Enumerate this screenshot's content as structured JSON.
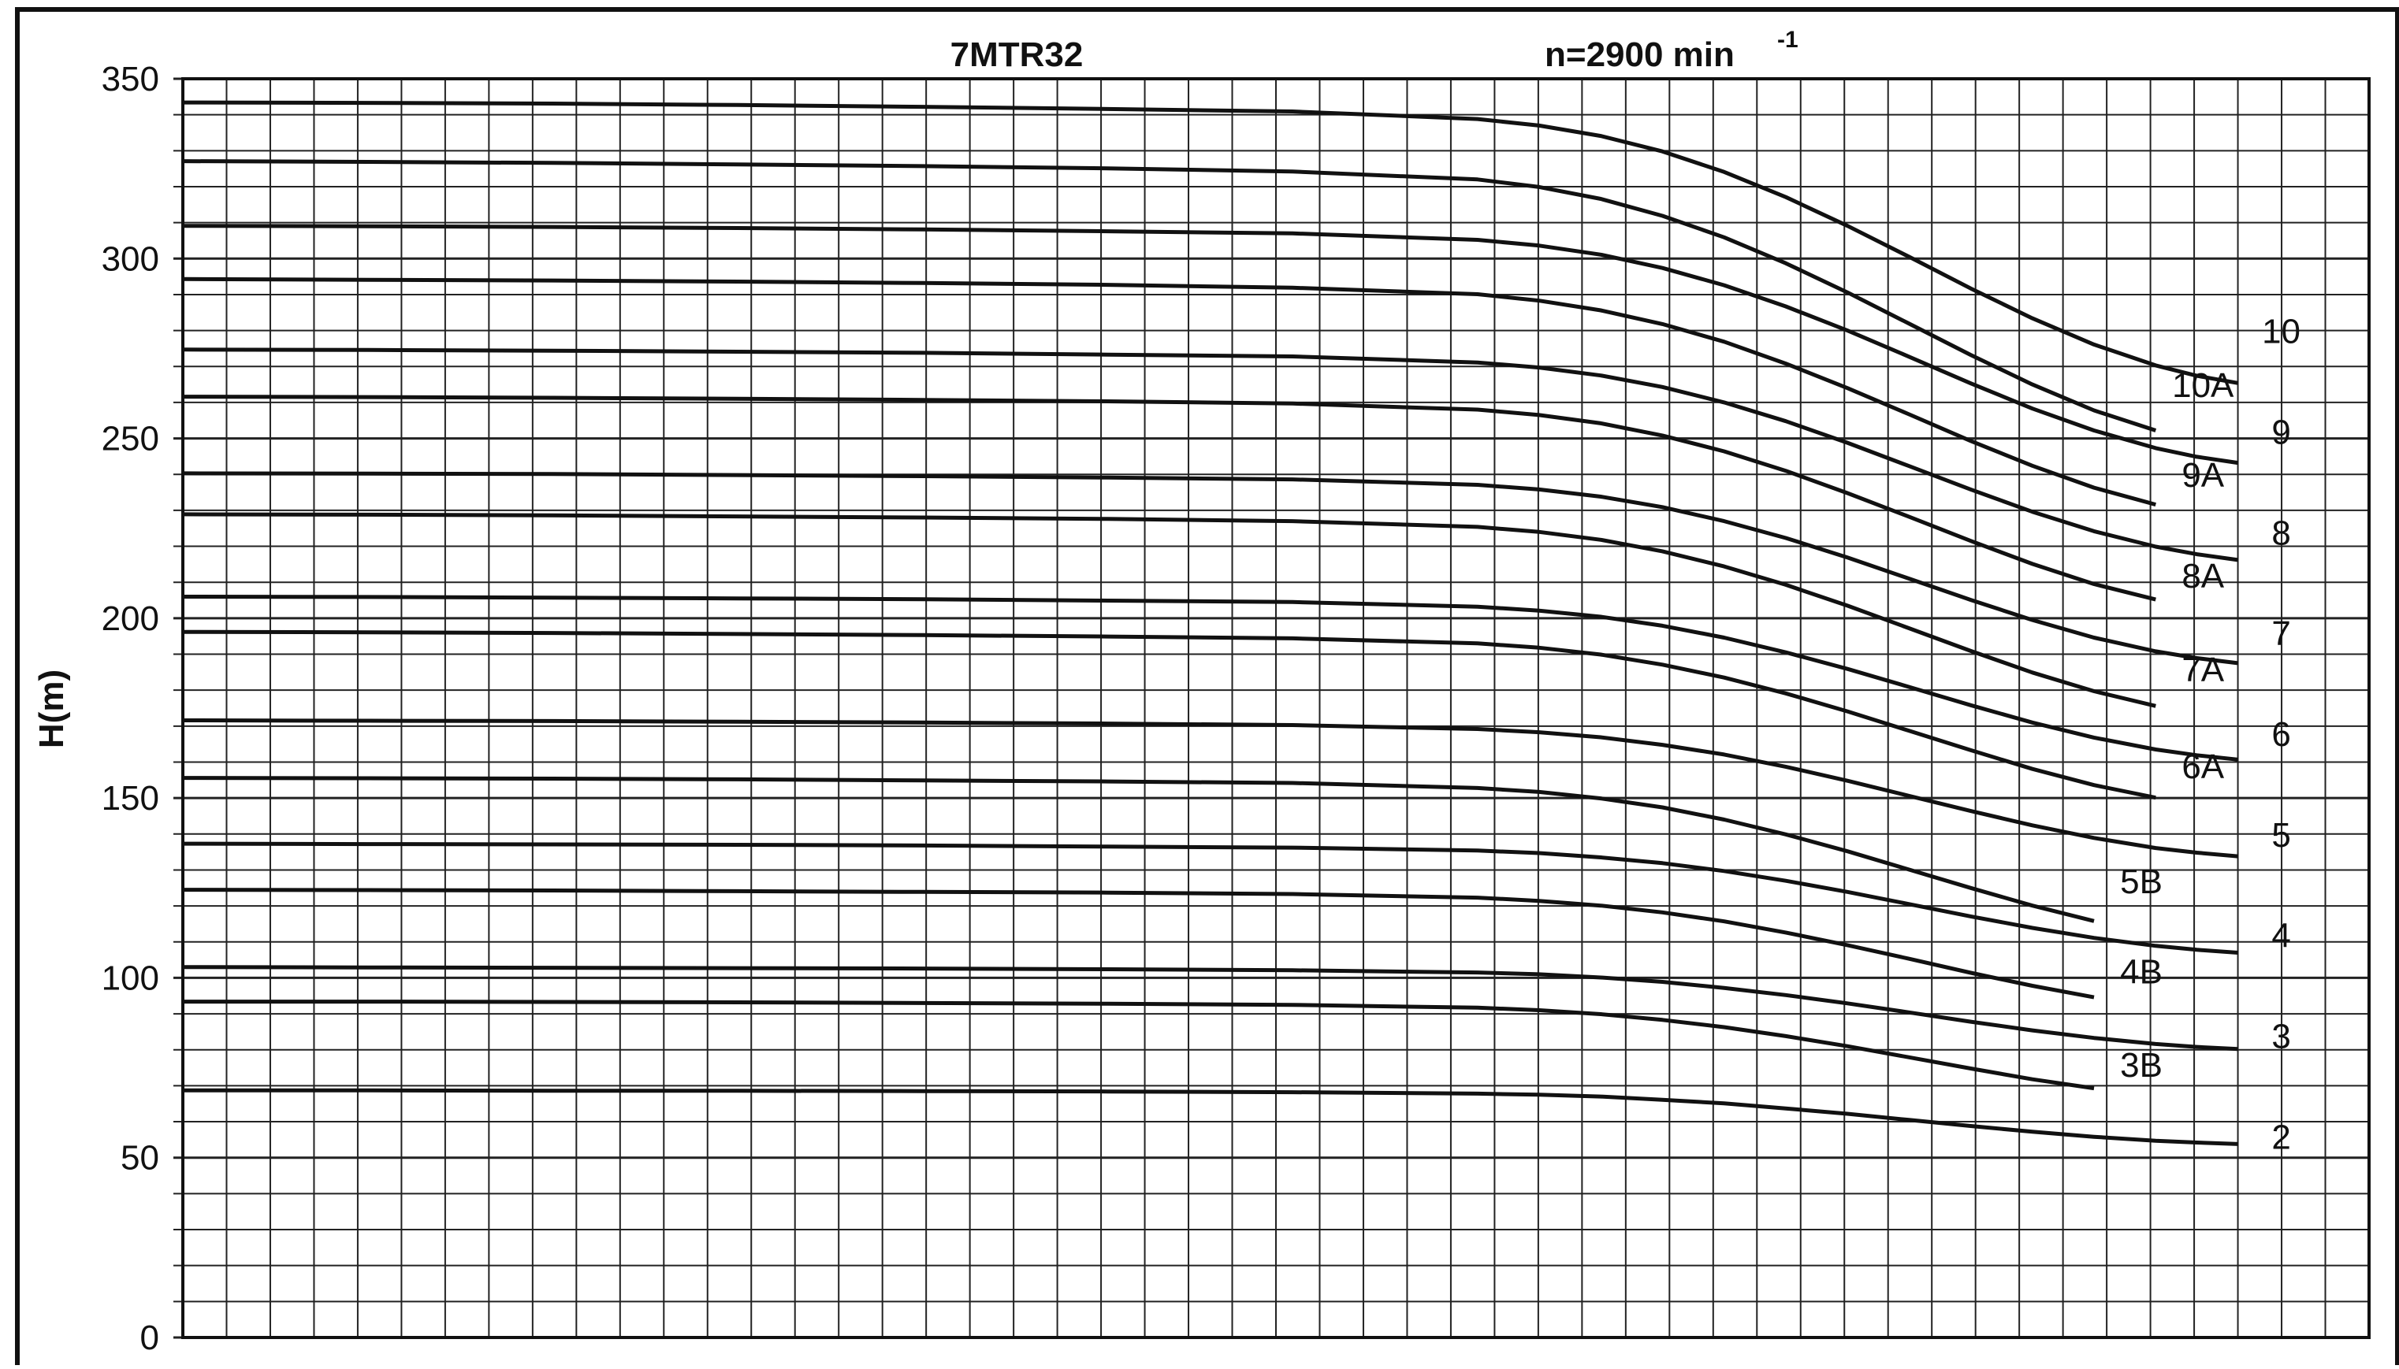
{
  "chart_data": {
    "type": "line",
    "title": "7MTR32",
    "speed_label": "n=2900 min",
    "speed_exponent": "-1",
    "xlabel": "",
    "ylabel": "H(m)",
    "ylim": [
      0,
      350
    ],
    "yticks": [
      0,
      50,
      100,
      150,
      200,
      250,
      300,
      350
    ],
    "xlim": [
      0,
      1
    ],
    "grid": true,
    "x": [
      0,
      0.09,
      0.18,
      0.27,
      0.36,
      0.45,
      0.54,
      0.63,
      0.66,
      0.69,
      0.72,
      0.75,
      0.78,
      0.81,
      0.84,
      0.87,
      0.9,
      0.93,
      0.96,
      0.98,
      1.0
    ],
    "series": [
      {
        "name": "10",
        "values": [
          343.4,
          343.3,
          343.1,
          342.7,
          342.2,
          341.6,
          340.9,
          338.8,
          337.0,
          334.1,
          329.8,
          324.1,
          317.1,
          309.1,
          300.5,
          291.7,
          283.4,
          276.1,
          270.3,
          267.4,
          265.4
        ],
        "label_value": 280
      },
      {
        "name": "10A",
        "values": [
          327.1,
          326.9,
          326.6,
          326.2,
          325.7,
          325.1,
          324.2,
          322.0,
          319.9,
          316.6,
          311.9,
          305.9,
          298.7,
          290.6,
          281.9,
          273.2,
          265.0,
          257.8,
          252.2,
          249.4,
          247.4
        ],
        "label_value": 265
      },
      {
        "name": "9",
        "values": [
          309.1,
          309.0,
          308.8,
          308.5,
          308.1,
          307.6,
          307.0,
          305.2,
          303.6,
          301.1,
          297.4,
          292.6,
          286.7,
          280.0,
          272.7,
          265.3,
          258.3,
          252.2,
          247.3,
          244.9,
          243.2
        ],
        "label_value": 252
      },
      {
        "name": "9A",
        "values": [
          294.3,
          294.1,
          293.9,
          293.6,
          293.2,
          292.7,
          291.9,
          290.1,
          288.3,
          285.6,
          281.8,
          276.9,
          270.8,
          264.0,
          256.7,
          249.3,
          242.4,
          236.3,
          231.6,
          229.3,
          227.6
        ],
        "label_value": 240
      },
      {
        "name": "8",
        "values": [
          274.7,
          274.6,
          274.4,
          274.1,
          273.8,
          273.3,
          272.8,
          271.1,
          269.7,
          267.5,
          264.3,
          260.0,
          254.8,
          248.8,
          242.3,
          235.8,
          229.6,
          224.2,
          219.9,
          217.8,
          216.2
        ],
        "label_value": 224
      },
      {
        "name": "8A",
        "values": [
          261.6,
          261.5,
          261.3,
          261.0,
          260.7,
          260.3,
          259.7,
          258.0,
          256.5,
          254.2,
          250.8,
          246.4,
          241.0,
          234.8,
          228.2,
          221.5,
          215.1,
          209.5,
          205.2,
          203.0,
          201.4
        ],
        "label_value": 212
      },
      {
        "name": "7",
        "values": [
          240.3,
          240.2,
          240.1,
          239.8,
          239.5,
          239.1,
          238.6,
          237.1,
          235.8,
          233.8,
          230.9,
          227.0,
          222.3,
          216.9,
          211.0,
          205.1,
          199.5,
          194.6,
          190.8,
          188.9,
          187.5
        ],
        "label_value": 196
      },
      {
        "name": "7A",
        "values": [
          228.9,
          228.8,
          228.6,
          228.3,
          228.0,
          227.6,
          227.0,
          225.4,
          224.0,
          221.8,
          218.6,
          214.4,
          209.3,
          203.5,
          197.2,
          190.9,
          184.9,
          179.7,
          175.6,
          173.5,
          172.0
        ],
        "label_value": 186
      },
      {
        "name": "6",
        "values": [
          206.0,
          205.9,
          205.7,
          205.5,
          205.3,
          204.9,
          204.5,
          203.2,
          202.1,
          200.4,
          197.9,
          194.6,
          190.5,
          185.9,
          180.9,
          175.8,
          171.0,
          166.8,
          163.5,
          161.9,
          160.7
        ],
        "label_value": 168
      },
      {
        "name": "6A",
        "values": [
          196.2,
          196.1,
          195.9,
          195.6,
          195.3,
          194.9,
          194.4,
          193.0,
          191.8,
          189.9,
          187.1,
          183.5,
          179.1,
          174.1,
          168.7,
          163.3,
          158.1,
          153.6,
          150.1,
          148.3,
          147.0
        ],
        "label_value": 159
      },
      {
        "name": "5",
        "values": [
          171.6,
          171.5,
          171.4,
          171.2,
          171.0,
          170.7,
          170.3,
          169.2,
          168.3,
          166.9,
          164.8,
          162.1,
          158.7,
          154.8,
          150.6,
          146.4,
          142.4,
          138.9,
          136.1,
          134.8,
          133.8
        ],
        "label_value": 140
      },
      {
        "name": "5B",
        "values": [
          155.6,
          155.5,
          155.4,
          155.2,
          154.9,
          154.6,
          154.2,
          152.8,
          151.7,
          149.9,
          147.4,
          144.0,
          139.9,
          135.2,
          130.1,
          125.0,
          120.1,
          115.8,
          112.4,
          110.7,
          109.5
        ],
        "label_value": 127
      },
      {
        "name": "4",
        "values": [
          137.3,
          137.2,
          137.1,
          137.0,
          136.8,
          136.5,
          136.2,
          135.4,
          134.7,
          133.5,
          131.9,
          129.7,
          127.0,
          123.9,
          120.5,
          117.1,
          113.9,
          111.1,
          108.9,
          107.8,
          107.0
        ],
        "label_value": 112
      },
      {
        "name": "4B",
        "values": [
          124.5,
          124.4,
          124.3,
          124.1,
          123.9,
          123.7,
          123.3,
          122.3,
          121.4,
          120.1,
          118.2,
          115.7,
          112.6,
          109.1,
          105.3,
          101.4,
          97.8,
          94.6,
          92.1,
          90.9,
          90.0
        ],
        "label_value": 102
      },
      {
        "name": "3",
        "values": [
          103.0,
          102.9,
          102.8,
          102.7,
          102.6,
          102.4,
          102.1,
          101.5,
          101.0,
          100.1,
          98.9,
          97.2,
          95.2,
          92.9,
          90.4,
          87.8,
          85.4,
          83.3,
          81.6,
          80.8,
          80.2
        ],
        "label_value": 84
      },
      {
        "name": "3B",
        "values": [
          93.4,
          93.4,
          93.3,
          93.2,
          93.0,
          92.8,
          92.5,
          91.7,
          91.0,
          89.9,
          88.3,
          86.3,
          83.8,
          81.0,
          77.9,
          74.8,
          71.8,
          69.3,
          67.2,
          66.3,
          65.5
        ],
        "label_value": 76
      },
      {
        "name": "2",
        "values": [
          68.7,
          68.7,
          68.6,
          68.6,
          68.5,
          68.4,
          68.2,
          67.8,
          67.5,
          67.0,
          66.1,
          65.1,
          63.7,
          62.2,
          60.5,
          58.8,
          57.2,
          55.8,
          54.7,
          54.2,
          53.8
        ],
        "label_value": 56
      }
    ],
    "series_end_x": {
      "10": 1.0,
      "10A": 0.97,
      "9": 1.0,
      "9A": 0.97,
      "8": 1.0,
      "8A": 0.97,
      "7": 1.0,
      "7A": 0.97,
      "6": 1.0,
      "6A": 0.97,
      "5": 1.0,
      "5B": 0.95,
      "4": 1.0,
      "4B": 0.95,
      "3": 1.0,
      "3B": 0.95,
      "2": 1.0
    }
  }
}
